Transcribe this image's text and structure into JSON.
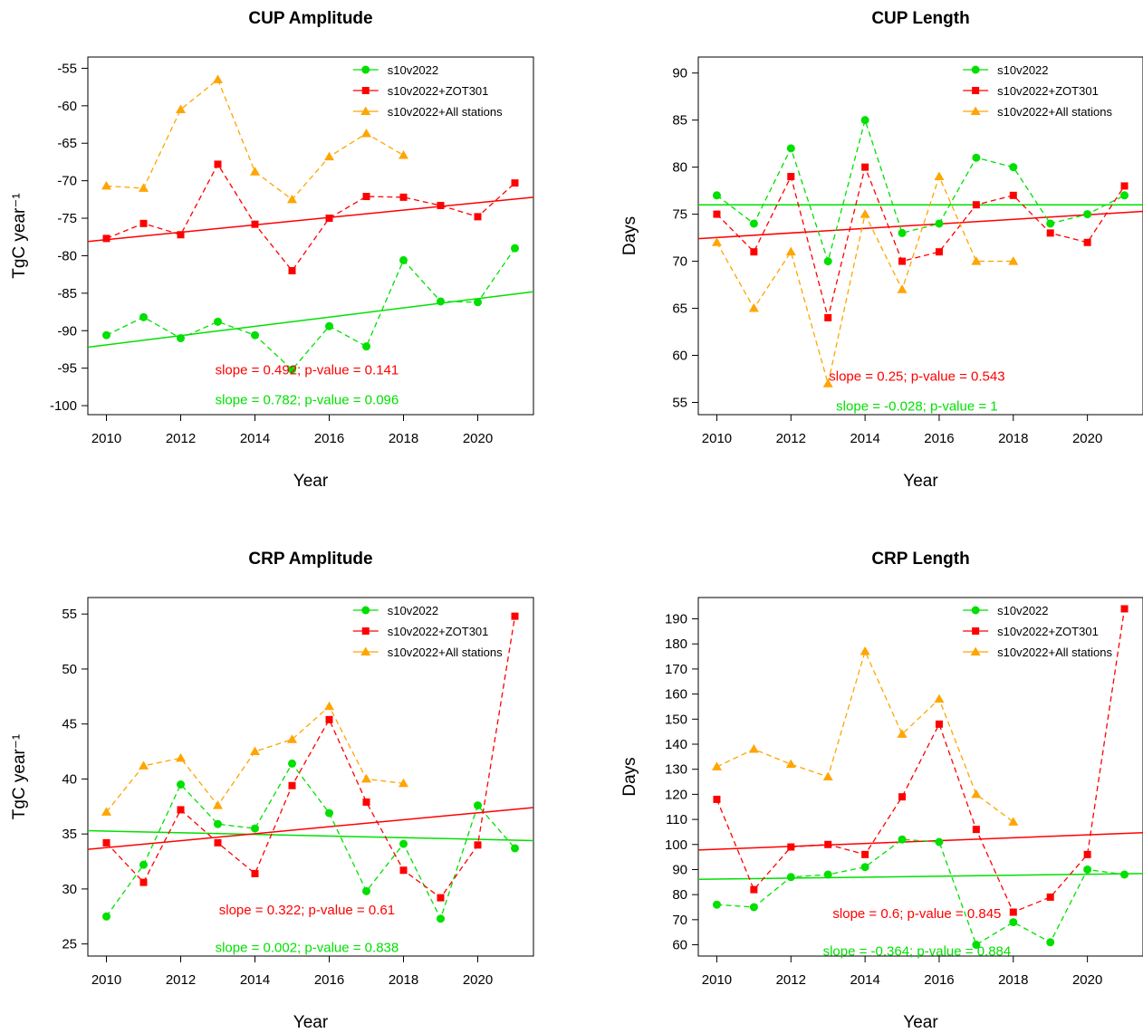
{
  "colors": {
    "s10v2022": "#00e000",
    "zot301": "#ff0000",
    "all": "#ffa500"
  },
  "chart_data": [
    {
      "type": "line",
      "title": "CUP Amplitude",
      "xlabel": "Year",
      "ylabel": "TgC year⁻¹",
      "xlim": [
        2009.5,
        2021.5
      ],
      "ylim": [
        -101.2,
        -53.5
      ],
      "xticks": [
        "2010",
        "2012",
        "2014",
        "2016",
        "2018",
        "2020"
      ],
      "yticks": [
        "-55",
        "-60",
        "-65",
        "-70",
        "-75",
        "-80",
        "-85",
        "-90",
        "-95",
        "-100"
      ],
      "legend_position": "top-right",
      "series": [
        {
          "name": "s10v2022",
          "marker": "circle",
          "color": "#00e000",
          "x": [
            2010,
            2011,
            2012,
            2013,
            2014,
            2015,
            2016,
            2017,
            2018,
            2019,
            2020,
            2021
          ],
          "y": [
            -90.6,
            -88.2,
            -91.0,
            -88.8,
            -90.6,
            -95.2,
            -89.4,
            -92.1,
            -80.6,
            -86.1,
            -86.2,
            -79.0
          ],
          "trend": {
            "from": -92.2,
            "to": -84.8
          }
        },
        {
          "name": "s10v2022+ZOT301",
          "marker": "square",
          "color": "#ff0000",
          "x": [
            2010,
            2011,
            2012,
            2013,
            2014,
            2015,
            2016,
            2017,
            2018,
            2019,
            2020,
            2021
          ],
          "y": [
            -77.7,
            -75.7,
            -77.2,
            -67.8,
            -75.8,
            -82.0,
            -75.0,
            -72.1,
            -72.2,
            -73.3,
            -74.8,
            -70.3
          ],
          "trend": {
            "from": -78.1,
            "to": -72.2
          }
        },
        {
          "name": "s10v2022+All stations",
          "marker": "triangle",
          "color": "#ffa500",
          "x": [
            2010,
            2011,
            2012,
            2013,
            2014,
            2015,
            2016,
            2017,
            2018
          ],
          "y": [
            -70.7,
            -71.0,
            -60.5,
            -56.5,
            -68.8,
            -72.5,
            -66.8,
            -63.7,
            -66.6
          ]
        }
      ],
      "annotations": [
        {
          "text": "slope = 0.492; p-value = 0.141",
          "color": "#ff0000",
          "x": 2015.4,
          "y": -95.2
        },
        {
          "text": "slope = 0.782; p-value = 0.096",
          "color": "#00e000",
          "x": 2015.4,
          "y": -99.2
        }
      ]
    },
    {
      "type": "line",
      "title": "CUP Length",
      "xlabel": "Year",
      "ylabel": "Days",
      "xlim": [
        2009.5,
        2021.5
      ],
      "ylim": [
        53.7,
        91.7
      ],
      "xticks": [
        "2010",
        "2012",
        "2014",
        "2016",
        "2018",
        "2020"
      ],
      "yticks": [
        "55",
        "60",
        "65",
        "70",
        "75",
        "80",
        "85",
        "90"
      ],
      "legend_position": "top-right",
      "series": [
        {
          "name": "s10v2022",
          "marker": "circle",
          "color": "#00e000",
          "x": [
            2010,
            2011,
            2012,
            2013,
            2014,
            2015,
            2016,
            2017,
            2018,
            2019,
            2020,
            2021
          ],
          "y": [
            77,
            74,
            82,
            70,
            85,
            73,
            74,
            81,
            80,
            74,
            75,
            77
          ],
          "trend": {
            "from": 76.0,
            "to": 76.0
          }
        },
        {
          "name": "s10v2022+ZOT301",
          "marker": "square",
          "color": "#ff0000",
          "x": [
            2010,
            2011,
            2012,
            2013,
            2014,
            2015,
            2016,
            2017,
            2018,
            2019,
            2020,
            2021
          ],
          "y": [
            75,
            71,
            79,
            64,
            80,
            70,
            71,
            76,
            77,
            73,
            72,
            78
          ],
          "trend": {
            "from": 72.4,
            "to": 75.3
          }
        },
        {
          "name": "s10v2022+All stations",
          "marker": "triangle",
          "color": "#ffa500",
          "x": [
            2010,
            2011,
            2012,
            2013,
            2014,
            2015,
            2016,
            2017,
            2018
          ],
          "y": [
            72,
            65,
            71,
            57,
            75,
            67,
            79,
            70,
            70
          ]
        }
      ],
      "annotations": [
        {
          "text": "slope = 0.25; p-value = 0.543",
          "color": "#ff0000",
          "x": 2015.4,
          "y": 57.8
        },
        {
          "text": "slope = -0.028; p-value = 1",
          "color": "#00e000",
          "x": 2015.4,
          "y": 54.6
        }
      ]
    },
    {
      "type": "line",
      "title": "CRP Amplitude",
      "xlabel": "Year",
      "ylabel": "TgC year⁻¹",
      "xlim": [
        2009.5,
        2021.5
      ],
      "ylim": [
        23.9,
        56.5
      ],
      "xticks": [
        "2010",
        "2012",
        "2014",
        "2016",
        "2018",
        "2020"
      ],
      "yticks": [
        "25",
        "30",
        "35",
        "40",
        "45",
        "50",
        "55"
      ],
      "legend_position": "top-right",
      "series": [
        {
          "name": "s10v2022",
          "marker": "circle",
          "color": "#00e000",
          "x": [
            2010,
            2011,
            2012,
            2013,
            2014,
            2015,
            2016,
            2017,
            2018,
            2019,
            2020,
            2021
          ],
          "y": [
            27.5,
            32.2,
            39.5,
            35.9,
            35.5,
            41.4,
            36.9,
            29.8,
            34.1,
            27.3,
            37.6,
            33.7
          ],
          "trend": {
            "from": 35.3,
            "to": 34.4
          }
        },
        {
          "name": "s10v2022+ZOT301",
          "marker": "square",
          "color": "#ff0000",
          "x": [
            2010,
            2011,
            2012,
            2013,
            2014,
            2015,
            2016,
            2017,
            2018,
            2019,
            2020,
            2021
          ],
          "y": [
            34.2,
            30.6,
            37.2,
            34.2,
            31.4,
            39.4,
            45.4,
            37.9,
            31.7,
            29.2,
            34.0,
            54.8
          ],
          "trend": {
            "from": 33.6,
            "to": 37.4
          }
        },
        {
          "name": "s10v2022+All stations",
          "marker": "triangle",
          "color": "#ffa500",
          "x": [
            2010,
            2011,
            2012,
            2013,
            2014,
            2015,
            2016,
            2017,
            2018
          ],
          "y": [
            37.0,
            41.2,
            41.9,
            37.6,
            42.5,
            43.6,
            46.6,
            40.0,
            39.6
          ]
        }
      ],
      "annotations": [
        {
          "text": "slope = 0.322; p-value = 0.61",
          "color": "#ff0000",
          "x": 2015.4,
          "y": 28.1
        },
        {
          "text": "slope = 0.002; p-value = 0.838",
          "color": "#00e000",
          "x": 2015.4,
          "y": 24.7
        }
      ]
    },
    {
      "type": "line",
      "title": "CRP Length",
      "xlabel": "Year",
      "ylabel": "Days",
      "xlim": [
        2009.5,
        2021.5
      ],
      "ylim": [
        55.5,
        198.5
      ],
      "xticks": [
        "2010",
        "2012",
        "2014",
        "2016",
        "2018",
        "2020"
      ],
      "yticks": [
        "60",
        "70",
        "80",
        "90",
        "100",
        "110",
        "120",
        "130",
        "140",
        "150",
        "160",
        "170",
        "180",
        "190"
      ],
      "legend_position": "top-right",
      "series": [
        {
          "name": "s10v2022",
          "marker": "circle",
          "color": "#00e000",
          "x": [
            2010,
            2011,
            2012,
            2013,
            2014,
            2015,
            2016,
            2017,
            2018,
            2019,
            2020,
            2021
          ],
          "y": [
            76,
            75,
            87,
            88,
            91,
            102,
            101,
            60,
            69,
            61,
            90,
            88
          ],
          "trend": {
            "from": 86.1,
            "to": 88.4
          }
        },
        {
          "name": "s10v2022+ZOT301",
          "marker": "square",
          "color": "#ff0000",
          "x": [
            2010,
            2011,
            2012,
            2013,
            2014,
            2015,
            2016,
            2017,
            2018,
            2019,
            2020,
            2021
          ],
          "y": [
            118,
            82,
            99,
            100,
            96,
            119,
            148,
            106,
            73,
            79,
            96,
            194
          ],
          "trend": {
            "from": 97.8,
            "to": 104.7
          }
        },
        {
          "name": "s10v2022+All stations",
          "marker": "triangle",
          "color": "#ffa500",
          "x": [
            2010,
            2011,
            2012,
            2013,
            2014,
            2015,
            2016,
            2017,
            2018
          ],
          "y": [
            131,
            138,
            132,
            127,
            177,
            144,
            158,
            120,
            109
          ]
        }
      ],
      "annotations": [
        {
          "text": "slope = 0.6; p-value = 0.845",
          "color": "#ff0000",
          "x": 2015.4,
          "y": 72.5
        },
        {
          "text": "slope = -0.364; p-value = 0.884",
          "color": "#00e000",
          "x": 2015.4,
          "y": 57.5
        }
      ]
    }
  ]
}
